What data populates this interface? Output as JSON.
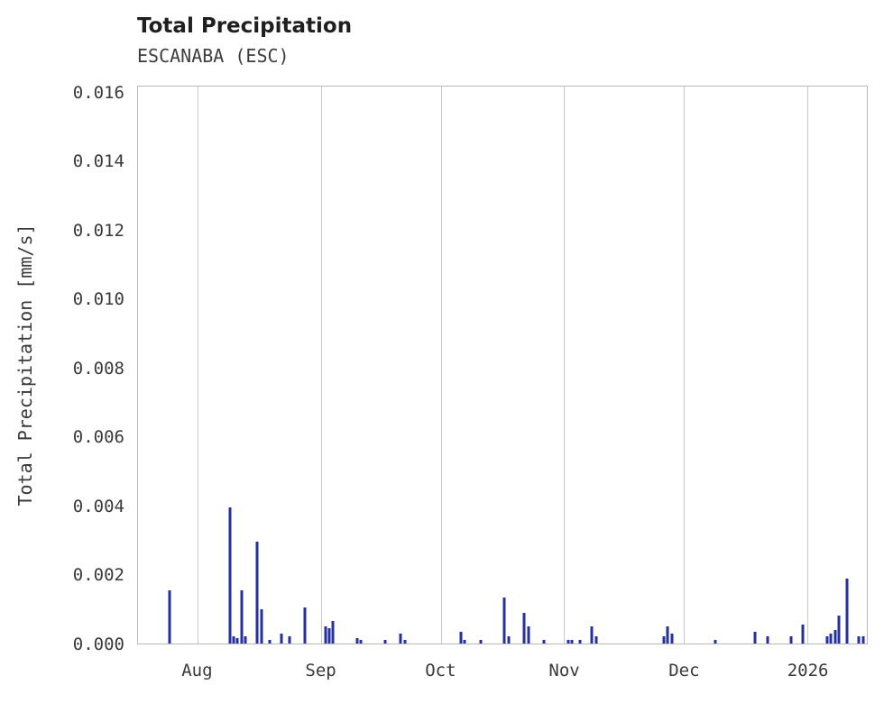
{
  "colors": {
    "spike": "#24309f",
    "grid": "#c9c9c9",
    "frame": "#b9b9b9",
    "title": "#1f1f1f",
    "text": "#3a3a3a"
  },
  "chart_data": {
    "type": "bar",
    "title": "Total Precipitation",
    "subtitle": "ESCANABA (ESC)",
    "xlabel": "",
    "ylabel": "Total Precipitation [mm/s]",
    "ylim": [
      0,
      0.0162
    ],
    "yticks": [
      "0.000",
      "0.002",
      "0.004",
      "0.006",
      "0.008",
      "0.010",
      "0.012",
      "0.014",
      "0.016"
    ],
    "x_domain": [
      "2025-07-17",
      "2026-01-16"
    ],
    "xticks": [
      {
        "label": "Aug",
        "date": "2025-08-01"
      },
      {
        "label": "Sep",
        "date": "2025-09-01"
      },
      {
        "label": "Oct",
        "date": "2025-10-01"
      },
      {
        "label": "Nov",
        "date": "2025-11-01"
      },
      {
        "label": "Dec",
        "date": "2025-12-01"
      },
      {
        "label": "2026",
        "date": "2026-01-01"
      }
    ],
    "grid": "vertical-only",
    "legend": "none",
    "points": [
      {
        "date": "2025-07-25",
        "value": 0.00155
      },
      {
        "date": "2025-08-09",
        "value": 0.00395
      },
      {
        "date": "2025-08-10",
        "value": 0.0002
      },
      {
        "date": "2025-08-11",
        "value": 0.00015
      },
      {
        "date": "2025-08-12",
        "value": 0.00155
      },
      {
        "date": "2025-08-13",
        "value": 0.0002
      },
      {
        "date": "2025-08-16",
        "value": 0.00295
      },
      {
        "date": "2025-08-17",
        "value": 0.001
      },
      {
        "date": "2025-08-19",
        "value": 0.0001
      },
      {
        "date": "2025-08-22",
        "value": 0.0003
      },
      {
        "date": "2025-08-24",
        "value": 0.0002
      },
      {
        "date": "2025-08-28",
        "value": 0.00105
      },
      {
        "date": "2025-09-02",
        "value": 0.0005
      },
      {
        "date": "2025-09-03",
        "value": 0.00045
      },
      {
        "date": "2025-09-04",
        "value": 0.00065
      },
      {
        "date": "2025-09-10",
        "value": 0.00015
      },
      {
        "date": "2025-09-11",
        "value": 0.0001
      },
      {
        "date": "2025-09-17",
        "value": 0.0001
      },
      {
        "date": "2025-09-21",
        "value": 0.0003
      },
      {
        "date": "2025-09-22",
        "value": 0.0001
      },
      {
        "date": "2025-10-06",
        "value": 0.00035
      },
      {
        "date": "2025-10-07",
        "value": 0.0001
      },
      {
        "date": "2025-10-11",
        "value": 0.0001
      },
      {
        "date": "2025-10-17",
        "value": 0.00135
      },
      {
        "date": "2025-10-18",
        "value": 0.0002
      },
      {
        "date": "2025-10-22",
        "value": 0.0009
      },
      {
        "date": "2025-10-23",
        "value": 0.0005
      },
      {
        "date": "2025-10-27",
        "value": 0.0001
      },
      {
        "date": "2025-11-02",
        "value": 0.0001
      },
      {
        "date": "2025-11-03",
        "value": 0.0001
      },
      {
        "date": "2025-11-05",
        "value": 0.0001
      },
      {
        "date": "2025-11-08",
        "value": 0.0005
      },
      {
        "date": "2025-11-09",
        "value": 0.0002
      },
      {
        "date": "2025-11-26",
        "value": 0.0002
      },
      {
        "date": "2025-11-27",
        "value": 0.0005
      },
      {
        "date": "2025-11-28",
        "value": 0.0003
      },
      {
        "date": "2025-12-09",
        "value": 0.0001
      },
      {
        "date": "2025-12-19",
        "value": 0.00035
      },
      {
        "date": "2025-12-22",
        "value": 0.0002
      },
      {
        "date": "2025-12-28",
        "value": 0.0002
      },
      {
        "date": "2025-12-31",
        "value": 0.00055
      },
      {
        "date": "2026-01-06",
        "value": 0.0002
      },
      {
        "date": "2026-01-07",
        "value": 0.0003
      },
      {
        "date": "2026-01-08",
        "value": 0.0004
      },
      {
        "date": "2026-01-09",
        "value": 0.0008
      },
      {
        "date": "2026-01-11",
        "value": 0.0019
      },
      {
        "date": "2026-01-14",
        "value": 0.0002
      },
      {
        "date": "2026-01-15",
        "value": 0.0002
      }
    ]
  }
}
